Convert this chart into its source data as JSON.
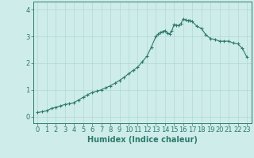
{
  "xlabel": "Humidex (Indice chaleur)",
  "line_color": "#2d7a6e",
  "marker": "+",
  "marker_size": 3,
  "marker_linewidth": 0.8,
  "line_width": 0.8,
  "background_color": "#ceecea",
  "grid_color": "#b0d8d5",
  "axis_color": "#2d7a6e",
  "tick_color": "#2d7a6e",
  "ylim": [
    -0.25,
    4.3
  ],
  "xlim": [
    -0.5,
    23.5
  ],
  "yticks": [
    0,
    1,
    2,
    3,
    4
  ],
  "xticks": [
    0,
    1,
    2,
    3,
    4,
    5,
    6,
    7,
    8,
    9,
    10,
    11,
    12,
    13,
    14,
    15,
    16,
    17,
    18,
    19,
    20,
    21,
    22,
    23
  ],
  "xlabel_fontsize": 7,
  "tick_fontsize": 6,
  "x_values": [
    0.0,
    0.5,
    1.0,
    1.5,
    2.0,
    2.5,
    3.0,
    3.5,
    4.0,
    4.5,
    5.0,
    5.5,
    6.0,
    6.5,
    7.0,
    7.5,
    8.0,
    8.5,
    9.0,
    9.5,
    10.0,
    10.5,
    11.0,
    11.5,
    12.0,
    12.5,
    13.0,
    13.25,
    13.5,
    13.75,
    14.0,
    14.25,
    14.5,
    14.75,
    15.0,
    15.25,
    15.5,
    15.75,
    16.0,
    16.25,
    16.5,
    16.75,
    17.0,
    17.5,
    18.0,
    18.5,
    19.0,
    19.5,
    20.0,
    20.5,
    21.0,
    21.5,
    22.0,
    22.5,
    23.0
  ],
  "y_values": [
    0.15,
    0.18,
    0.22,
    0.3,
    0.35,
    0.4,
    0.45,
    0.48,
    0.52,
    0.62,
    0.72,
    0.82,
    0.9,
    0.95,
    1.0,
    1.08,
    1.15,
    1.25,
    1.35,
    1.47,
    1.6,
    1.73,
    1.85,
    2.05,
    2.25,
    2.6,
    3.0,
    3.08,
    3.15,
    3.18,
    3.22,
    3.12,
    3.1,
    3.2,
    3.45,
    3.42,
    3.4,
    3.48,
    3.65,
    3.62,
    3.58,
    3.6,
    3.55,
    3.38,
    3.3,
    3.05,
    2.92,
    2.88,
    2.82,
    2.82,
    2.82,
    2.75,
    2.72,
    2.55,
    2.22
  ]
}
